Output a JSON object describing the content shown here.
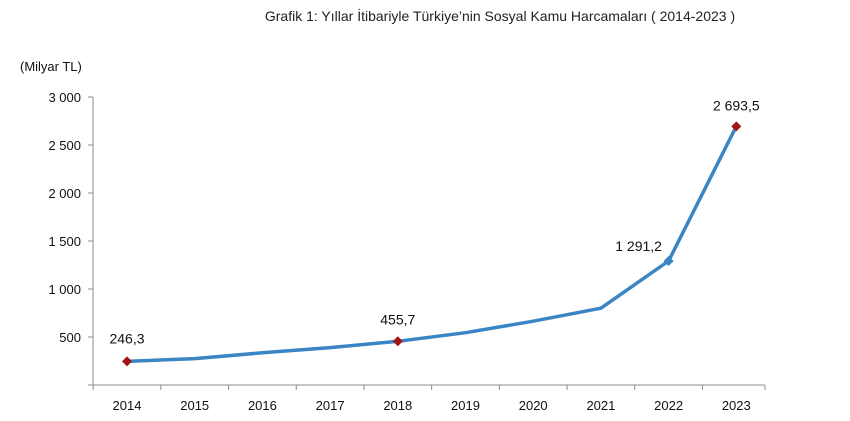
{
  "chart_data": {
    "type": "line",
    "title": "Grafik 1: Yıllar İtibariyle Türkiye’nin Sosyal Kamu Harcamaları ( 2014-2023 )",
    "ylabel": "(Milyar TL)",
    "xlabel": "",
    "categories": [
      "2014",
      "2015",
      "2016",
      "2017",
      "2018",
      "2019",
      "2020",
      "2021",
      "2022",
      "2023"
    ],
    "series": [
      {
        "values": [
          246.3,
          275,
          335,
          390,
          455.7,
          545,
          665,
          800,
          1291.2,
          2693.5
        ]
      }
    ],
    "ylim": [
      0,
      3000
    ],
    "yticks": [
      500,
      1000,
      1500,
      2000,
      2500,
      3000
    ],
    "ytick_labels": [
      "500",
      "1 000",
      "1 500",
      "2 000",
      "2 500",
      "3 000"
    ],
    "data_labels": [
      {
        "index": 0,
        "text": "246,3"
      },
      {
        "index": 4,
        "text": "455,7"
      },
      {
        "index": 8,
        "text": "1 291,2"
      },
      {
        "index": 9,
        "text": "2 693,5"
      }
    ],
    "line_color": "#3a85c4",
    "marker_colors": {
      "red": "#a31515",
      "blue": "#3a85c4"
    },
    "grid": false,
    "legend": "none"
  }
}
